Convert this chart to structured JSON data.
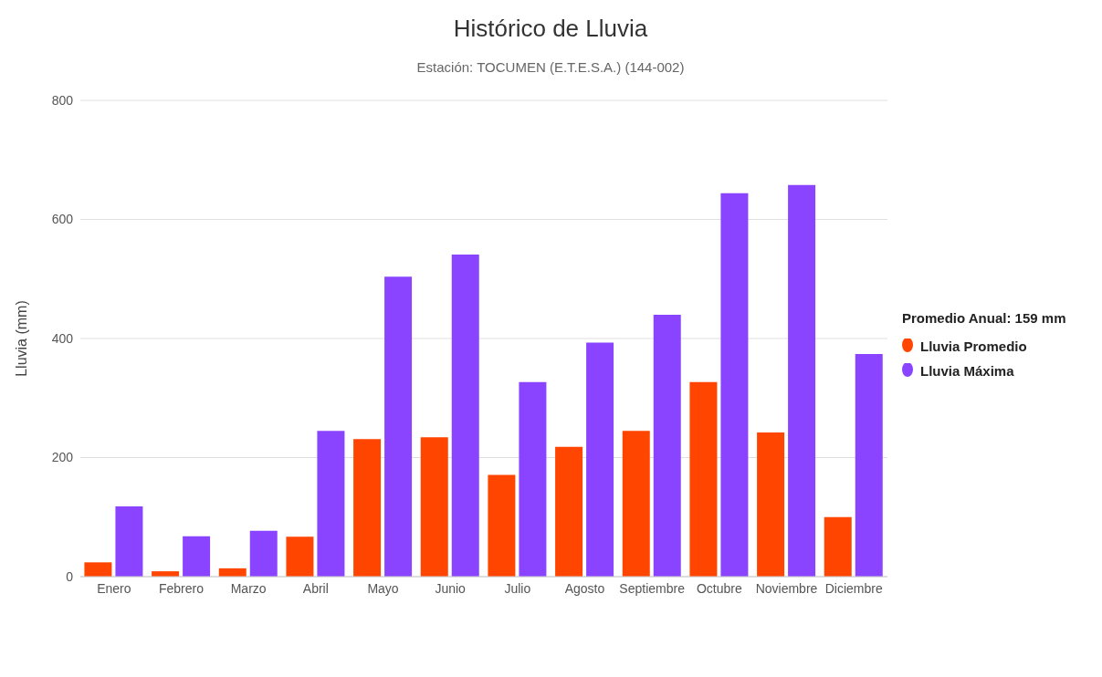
{
  "chart_data": {
    "type": "bar",
    "title": "Histórico de Lluvia",
    "subtitle": "Estación: TOCUMEN (E.T.E.S.A.) (144-002)",
    "ylabel": "Lluvia (mm)",
    "legend_title": "Promedio Anual: 159 mm",
    "categories": [
      "Enero",
      "Febrero",
      "Marzo",
      "Abril",
      "Mayo",
      "Junio",
      "Julio",
      "Agosto",
      "Septiembre",
      "Octubre",
      "Noviembre",
      "Diciembre"
    ],
    "series": [
      {
        "name": "Lluvia Promedio",
        "color": "#ff4500",
        "values": [
          24,
          9,
          14,
          67,
          231,
          234,
          171,
          218,
          245,
          327,
          242,
          100
        ]
      },
      {
        "name": "Lluvia Máxima",
        "color": "#8a44ff",
        "values": [
          118,
          68,
          77,
          245,
          504,
          541,
          327,
          393,
          440,
          644,
          658,
          374
        ]
      }
    ],
    "ylim": [
      0,
      800
    ],
    "yticks": [
      0,
      200,
      400,
      600,
      800
    ],
    "grid": "y",
    "legend": "right",
    "marker": "circle"
  }
}
